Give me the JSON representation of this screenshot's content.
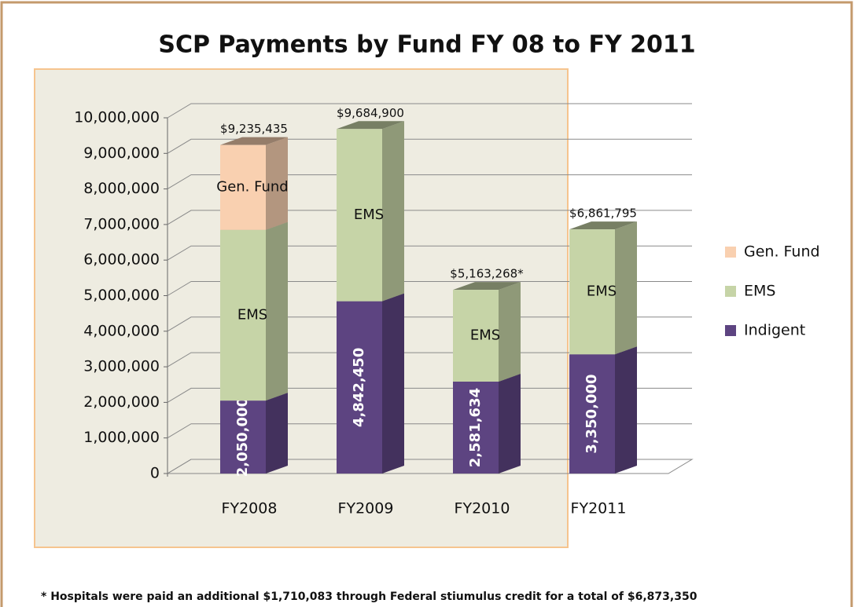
{
  "chart_data": {
    "type": "bar3d-stacked",
    "title": "SCP Payments by Fund FY 08 to FY 2011",
    "categories": [
      "FY2008",
      "FY2009",
      "FY2010",
      "FY2011"
    ],
    "series": [
      {
        "name": "Indigent",
        "color": "#5d4481",
        "values": [
          2050000,
          4842450,
          2581634,
          3350000
        ],
        "value_labels": [
          "2,050,000",
          "4,842,450",
          "2,581,634",
          "3,350,000"
        ]
      },
      {
        "name": "EMS",
        "color": "#c6d4a7",
        "values": [
          4800000,
          4842450,
          2581634,
          3511795
        ]
      },
      {
        "name": "Gen. Fund",
        "color": "#f9d0b0",
        "values": [
          2385435,
          null,
          null,
          null
        ]
      }
    ],
    "total_labels": [
      "$9,235,435",
      "$9,684,900",
      "$5,163,268*",
      "$6,861,795"
    ],
    "ylim": [
      0,
      10000000
    ],
    "yticks": [
      {
        "value": 0,
        "label": "0"
      },
      {
        "value": 1000000,
        "label": "1,000,000"
      },
      {
        "value": 2000000,
        "label": "2,000,000"
      },
      {
        "value": 3000000,
        "label": "3,000,000"
      },
      {
        "value": 4000000,
        "label": "4,000,000"
      },
      {
        "value": 5000000,
        "label": "5,000,000"
      },
      {
        "value": 6000000,
        "label": "6,000,000"
      },
      {
        "value": 7000000,
        "label": "7,000,000"
      },
      {
        "value": 8000000,
        "label": "8,000,000"
      },
      {
        "value": 9000000,
        "label": "9,000,000"
      },
      {
        "value": 10000000,
        "label": "10,000,000"
      }
    ],
    "grid": true,
    "legend": "right",
    "footnote": "* Hospitals were paid an additional $1,710,083 through Federal stiumulus credit for a total of $6,873,350"
  }
}
